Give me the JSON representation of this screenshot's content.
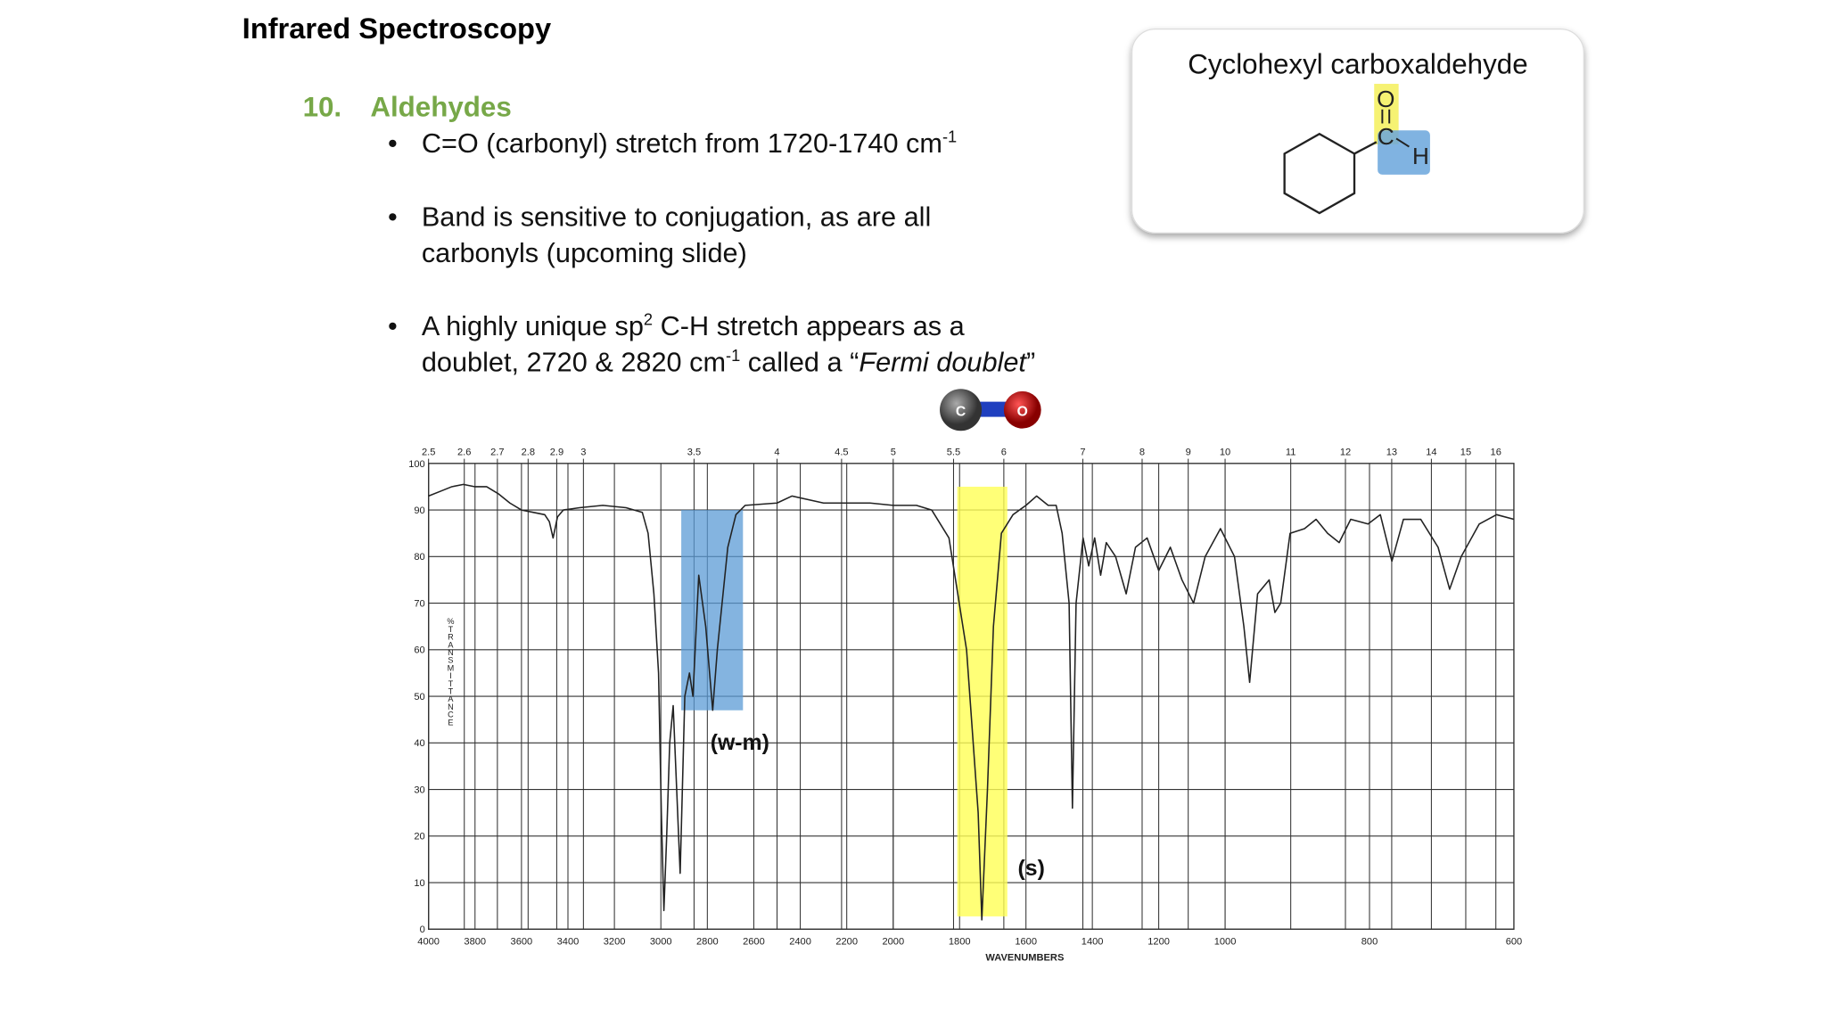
{
  "header": {
    "title": "Infrared Spectroscopy"
  },
  "section": {
    "number": "10.",
    "title": "Aldehydes"
  },
  "bullets": [
    {
      "lines": [
        [
          "C=O (carbonyl) stretch from 1720-1740 cm",
          "-1"
        ]
      ]
    },
    {
      "lines": [
        [
          "Band is sensitive to conjugation, as are all"
        ],
        [
          "carbonyls (upcoming slide)"
        ]
      ]
    },
    {
      "lines": [
        [
          "A highly unique sp",
          "2",
          " C-H stretch appears as a"
        ],
        [
          "doublet, 2720 & 2820 cm",
          "-1",
          " called a “",
          "Fermi doublet",
          "”"
        ]
      ]
    }
  ],
  "molecule": {
    "title": "Cyclohexyl carboxaldehyde",
    "atoms": [
      "O",
      "C",
      "H"
    ]
  },
  "icon": {
    "atoms": [
      "C",
      "O"
    ]
  },
  "chart_data": {
    "type": "line",
    "x_label": "WAVENUMBERS",
    "y_label": "%TRANSMITTANCE",
    "annotations": [
      "(w-m)",
      "(s)"
    ],
    "xlim": [
      4000,
      600
    ],
    "xscale_breaks": [
      2000,
      1000
    ],
    "xticks": [
      4000,
      3800,
      3600,
      3400,
      3200,
      3000,
      2800,
      2600,
      2400,
      2200,
      2000,
      1800,
      1600,
      1400,
      1200,
      1000,
      800,
      600
    ],
    "x2ticks": [
      2.5,
      2.6,
      2.7,
      2.8,
      2.9,
      3,
      3.5,
      4,
      4.5,
      5,
      5.5,
      6,
      7,
      8,
      9,
      10,
      11,
      12,
      13,
      14,
      15,
      16
    ],
    "ylim": [
      0,
      100
    ],
    "yticks": [
      0,
      10,
      20,
      30,
      40,
      50,
      60,
      70,
      80,
      90,
      100
    ],
    "grid": true,
    "x": [
      4000,
      3950,
      3900,
      3850,
      3800,
      3750,
      3700,
      3650,
      3600,
      3550,
      3500,
      3480,
      3464,
      3445,
      3420,
      3350,
      3250,
      3150,
      3080,
      3055,
      3030,
      3010,
      2998,
      2987,
      2975,
      2962,
      2947,
      2932,
      2917,
      2897,
      2877,
      2862,
      2837,
      2807,
      2777,
      2757,
      2712,
      2677,
      2637,
      2500,
      2436,
      2300,
      2200,
      2100,
      2000,
      1930,
      1884,
      1832,
      1779,
      1744,
      1733,
      1716,
      1698,
      1674,
      1639,
      1600,
      1568,
      1533,
      1509,
      1491,
      1470,
      1460,
      1449,
      1428,
      1411,
      1393,
      1375,
      1358,
      1330,
      1298,
      1270,
      1235,
      1200,
      1165,
      1130,
      1095,
      1060,
      1014,
      987,
      974,
      966,
      955,
      939,
      931,
      923,
      910,
      890,
      874,
      858,
      842,
      826,
      802,
      785,
      769,
      753,
      729,
      705,
      689,
      673,
      648,
      624,
      600
    ],
    "series": [
      {
        "color": "#222222",
        "values": [
          93,
          94,
          95,
          95.5,
          95,
          95,
          93.5,
          91.5,
          90,
          89.5,
          89,
          87.5,
          84,
          88.5,
          90,
          90.5,
          91,
          90.5,
          89.5,
          85,
          72,
          55,
          25,
          4,
          20,
          40,
          48,
          30,
          12,
          50,
          55,
          50,
          76,
          65,
          47,
          60,
          82,
          89,
          91,
          91.5,
          93,
          91.5,
          91.5,
          91.5,
          91,
          91,
          90,
          84,
          60,
          25,
          2,
          30,
          65,
          85,
          89,
          91,
          93,
          91,
          91,
          85,
          70,
          26,
          70,
          84,
          78,
          84,
          76,
          83,
          80,
          72,
          82,
          84,
          77,
          82,
          75,
          70,
          80,
          86,
          80,
          65,
          53,
          72,
          75,
          68,
          70,
          85,
          86,
          88,
          85,
          83,
          88,
          87,
          89,
          79,
          88,
          88,
          82,
          73,
          80,
          87,
          89,
          88
        ]
      }
    ]
  }
}
